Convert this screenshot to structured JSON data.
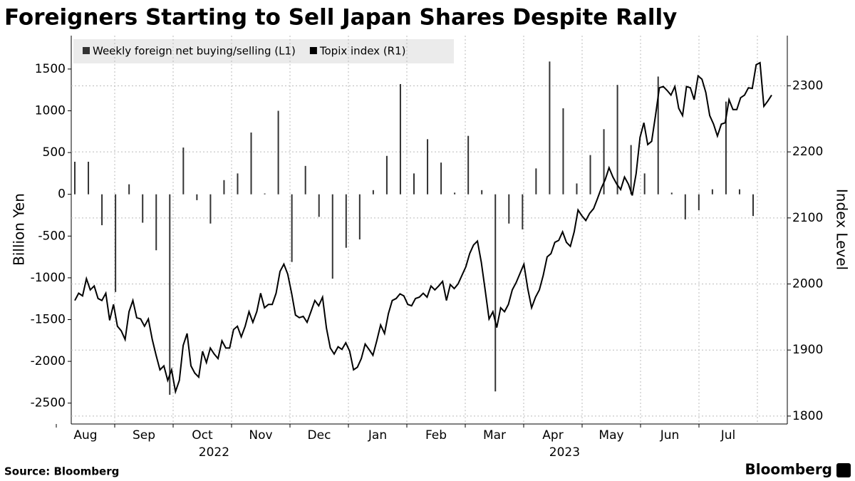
{
  "chart_data": {
    "type": "bar_line",
    "title": "Foreigners Starting to Sell Japan Shares Despite Rally",
    "source": "Source: Bloomberg",
    "brand": "Bloomberg",
    "ylabel": "Billion Yen",
    "y2label": "Index Level",
    "months": [
      "Aug",
      "Sep",
      "Oct",
      "Nov",
      "Dec",
      "Jan",
      "Feb",
      "Mar",
      "Apr",
      "May",
      "Jun",
      "Jul"
    ],
    "years": [
      "2022",
      "2023"
    ],
    "ylim": [
      -2750,
      1900
    ],
    "yticks": [
      -2500,
      -2000,
      -1500,
      -1000,
      -500,
      0,
      500,
      1000,
      1500
    ],
    "y2lim": [
      1788,
      2376
    ],
    "y2ticks": [
      1800,
      1900,
      2000,
      2100,
      2200,
      2300
    ],
    "grid": true,
    "legend": "top-left",
    "series": [
      {
        "name": "Weekly foreign net buying/selling (L1)",
        "type": "bar",
        "color": "#333333",
        "values": [
          390,
          390,
          -370,
          -1170,
          120,
          -340,
          -670,
          -2400,
          560,
          -70,
          -350,
          170,
          250,
          740,
          10,
          1000,
          -810,
          340,
          -270,
          -1010,
          -640,
          -540,
          50,
          460,
          1320,
          250,
          660,
          380,
          20,
          700,
          50,
          -2360,
          -350,
          -420,
          310,
          1590,
          1030,
          130,
          470,
          780,
          1310,
          590,
          250,
          1410,
          20,
          -300,
          -190,
          60,
          1110,
          60,
          -260
        ]
      },
      {
        "name": "Topix index (R1)",
        "type": "line",
        "axis": "y2",
        "color": "#000000",
        "values": [
          1975,
          1986,
          1982,
          2008,
          1991,
          1997,
          1978,
          1975,
          1986,
          1945,
          1969,
          1936,
          1929,
          1916,
          1958,
          1975,
          1949,
          1947,
          1936,
          1947,
          1916,
          1892,
          1870,
          1876,
          1854,
          1870,
          1837,
          1854,
          1907,
          1925,
          1876,
          1865,
          1859,
          1898,
          1881,
          1903,
          1894,
          1887,
          1914,
          1903,
          1903,
          1931,
          1936,
          1920,
          1936,
          1958,
          1942,
          1958,
          1986,
          1964,
          1969,
          1969,
          1986,
          2019,
          2030,
          2015,
          1986,
          1953,
          1949,
          1951,
          1942,
          1958,
          1975,
          1967,
          1980,
          1933,
          1903,
          1894,
          1905,
          1901,
          1911,
          1898,
          1870,
          1874,
          1887,
          1909,
          1901,
          1892,
          1914,
          1938,
          1925,
          1955,
          1975,
          1978,
          1985,
          1982,
          1969,
          1967,
          1978,
          1980,
          1986,
          1980,
          1997,
          1991,
          1997,
          2004,
          1975,
          1999,
          1993,
          2000,
          2013,
          2026,
          2046,
          2059,
          2065,
          2033,
          1991,
          1947,
          1958,
          1934,
          1964,
          1958,
          1969,
          1991,
          2002,
          2016,
          2030,
          1993,
          1964,
          1980,
          1991,
          2013,
          2041,
          2046,
          2063,
          2066,
          2079,
          2063,
          2057,
          2079,
          2112,
          2103,
          2096,
          2107,
          2114,
          2129,
          2145,
          2158,
          2176,
          2162,
          2151,
          2143,
          2162,
          2151,
          2134,
          2167,
          2222,
          2244,
          2211,
          2216,
          2255,
          2297,
          2299,
          2293,
          2286,
          2299,
          2266,
          2255,
          2299,
          2297,
          2279,
          2315,
          2310,
          2290,
          2255,
          2242,
          2224,
          2242,
          2244,
          2279,
          2264,
          2264,
          2282,
          2286,
          2297,
          2296,
          2332,
          2335,
          2269,
          2277,
          2286
        ]
      }
    ]
  }
}
